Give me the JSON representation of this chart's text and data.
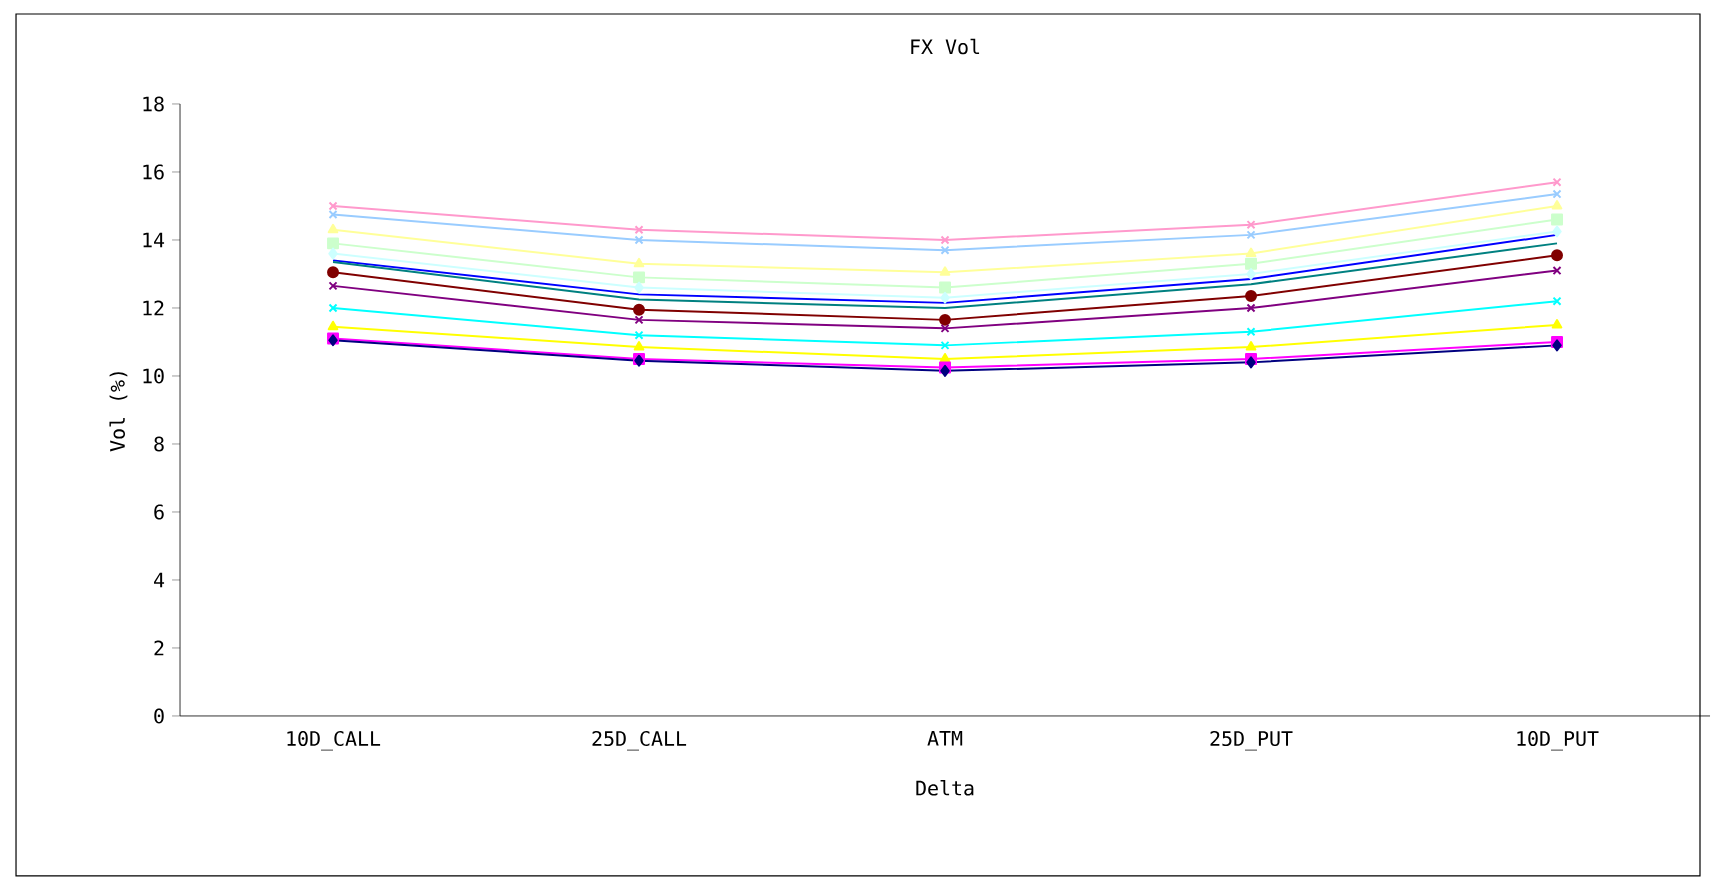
{
  "chart_data": {
    "type": "line",
    "title": "FX Vol",
    "xlabel": "Delta",
    "ylabel": "Vol (%)",
    "categories": [
      "10D_CALL",
      "25D_CALL",
      "ATM",
      "25D_PUT",
      "10D_PUT"
    ],
    "ylim": [
      0,
      18
    ],
    "yticks": [
      0,
      2,
      4,
      6,
      8,
      10,
      12,
      14,
      16,
      18
    ],
    "grid": false,
    "series": [
      {
        "color": "#000080",
        "marker": "diamond",
        "values": [
          11.05,
          10.45,
          10.15,
          10.4,
          10.9
        ]
      },
      {
        "color": "#ff00ff",
        "marker": "square",
        "values": [
          11.1,
          10.5,
          10.25,
          10.5,
          11.0
        ]
      },
      {
        "color": "#ffff00",
        "marker": "triangle",
        "values": [
          11.45,
          10.85,
          10.5,
          10.85,
          11.5
        ]
      },
      {
        "color": "#00ffff",
        "marker": "cross",
        "values": [
          12.0,
          11.2,
          10.9,
          11.3,
          12.2
        ]
      },
      {
        "color": "#800080",
        "marker": "cross",
        "values": [
          12.65,
          11.65,
          11.4,
          12.0,
          13.1
        ]
      },
      {
        "color": "#800000",
        "marker": "circle",
        "values": [
          13.05,
          11.95,
          11.65,
          12.35,
          13.55
        ]
      },
      {
        "color": "#008080",
        "marker": "none",
        "values": [
          13.35,
          12.25,
          12.0,
          12.7,
          13.9
        ]
      },
      {
        "color": "#0000ff",
        "marker": "none",
        "values": [
          13.4,
          12.4,
          12.15,
          12.85,
          14.15
        ]
      },
      {
        "color": "#ccffff",
        "marker": "diamond",
        "values": [
          13.6,
          12.6,
          12.3,
          13.0,
          14.25
        ]
      },
      {
        "color": "#ccffcc",
        "marker": "square",
        "values": [
          13.9,
          12.9,
          12.6,
          13.3,
          14.6
        ]
      },
      {
        "color": "#ffff99",
        "marker": "triangle",
        "values": [
          14.3,
          13.3,
          13.05,
          13.6,
          15.0
        ]
      },
      {
        "color": "#99ccff",
        "marker": "cross",
        "values": [
          14.75,
          14.0,
          13.7,
          14.15,
          15.35
        ]
      },
      {
        "color": "#ff99cc",
        "marker": "cross",
        "values": [
          15.0,
          14.3,
          14.0,
          14.45,
          15.7
        ]
      }
    ]
  }
}
